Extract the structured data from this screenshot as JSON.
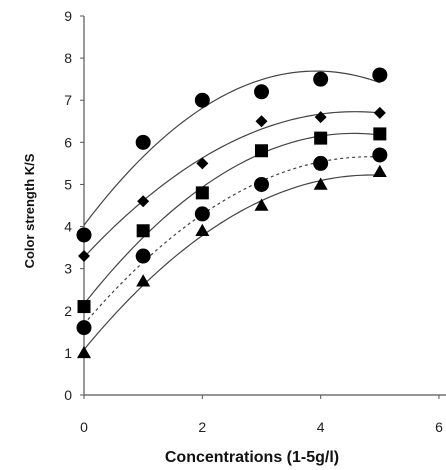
{
  "chart_data": {
    "type": "scatter",
    "title": "",
    "xlabel": "Concentrations (1-5g/l)",
    "ylabel": "Color strength K/S",
    "xlim": [
      0,
      6
    ],
    "ylim": [
      0,
      9
    ],
    "x_ticks": [
      "0",
      "2",
      "4",
      "6"
    ],
    "y_ticks": [
      "0",
      "1",
      "2",
      "3",
      "4",
      "5",
      "6",
      "7",
      "8",
      "9"
    ],
    "grid": false,
    "legend": "none",
    "x": [
      0,
      1,
      2,
      3,
      4,
      5
    ],
    "series": [
      {
        "marker": "circle",
        "line": "solid",
        "values": [
          3.8,
          6.0,
          7.0,
          7.2,
          7.5,
          7.6
        ]
      },
      {
        "marker": "diamond",
        "line": "solid",
        "values": [
          3.3,
          4.6,
          5.5,
          6.5,
          6.6,
          6.7
        ]
      },
      {
        "marker": "square",
        "line": "solid",
        "values": [
          2.1,
          3.9,
          4.8,
          5.8,
          6.1,
          6.2
        ]
      },
      {
        "marker": "circle",
        "line": "dashed",
        "values": [
          1.6,
          3.3,
          4.3,
          5.0,
          5.5,
          5.7
        ]
      },
      {
        "marker": "triangle",
        "line": "solid",
        "values": [
          1.0,
          2.7,
          3.9,
          4.5,
          5.0,
          5.3
        ]
      }
    ],
    "colors": {
      "marker": "#000000",
      "line": "#444444",
      "axis": "#555555"
    }
  }
}
